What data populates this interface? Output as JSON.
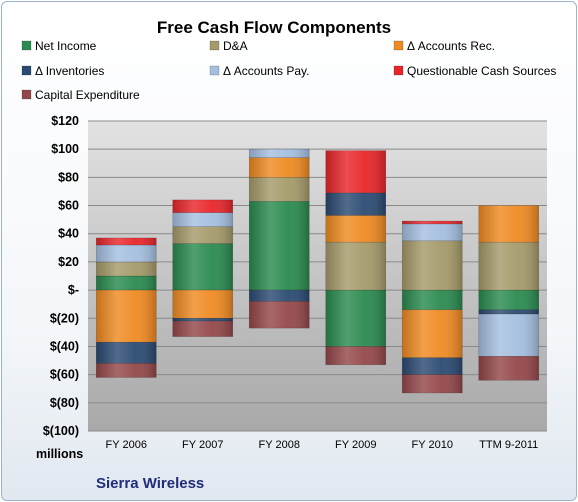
{
  "chart_data": {
    "type": "bar",
    "stacked": true,
    "title": "Free Cash Flow Components",
    "units_label": "millions",
    "company": "Sierra Wireless",
    "categories": [
      "FY 2006",
      "FY 2007",
      "FY 2008",
      "FY 2009",
      "FY 2010",
      "TTM 9-2011"
    ],
    "ylim": [
      -100,
      120
    ],
    "yticks": [
      120,
      100,
      80,
      60,
      40,
      20,
      0,
      -20,
      -40,
      -60,
      -80,
      -100
    ],
    "ytick_labels": [
      "$120",
      "$100",
      "$80",
      "$60",
      "$40",
      "$20",
      "$-",
      "$(20)",
      "$(40)",
      "$(60)",
      "$(80)",
      "$(100)"
    ],
    "grid": true,
    "legend_position": "top",
    "series": [
      {
        "name": "Net Income",
        "color": "#2a8a4f",
        "values": [
          10,
          33,
          63,
          -40,
          -14,
          -14
        ]
      },
      {
        "name": "D&A",
        "color": "#a59a6a",
        "values": [
          10,
          12,
          17,
          34,
          35,
          34
        ]
      },
      {
        "name": "Δ Accounts Rec.",
        "color": "#ef8a22",
        "values": [
          -37,
          -20,
          14,
          19,
          -34,
          26
        ]
      },
      {
        "name": "Δ Inventories",
        "color": "#2b4a72",
        "values": [
          -15,
          -2,
          -8,
          16,
          -12,
          -3
        ]
      },
      {
        "name": "Δ Accounts Pay.",
        "color": "#a5bfe0",
        "values": [
          12,
          10,
          6,
          0,
          12,
          -30
        ]
      },
      {
        "name": "Questionable Cash Sources",
        "color": "#e8262a",
        "values": [
          5,
          9,
          0,
          30,
          2,
          0
        ]
      },
      {
        "name": "Capital Expenditure",
        "color": "#94474a",
        "values": [
          -10,
          -11,
          -19,
          -13,
          -13,
          -17
        ]
      }
    ]
  }
}
